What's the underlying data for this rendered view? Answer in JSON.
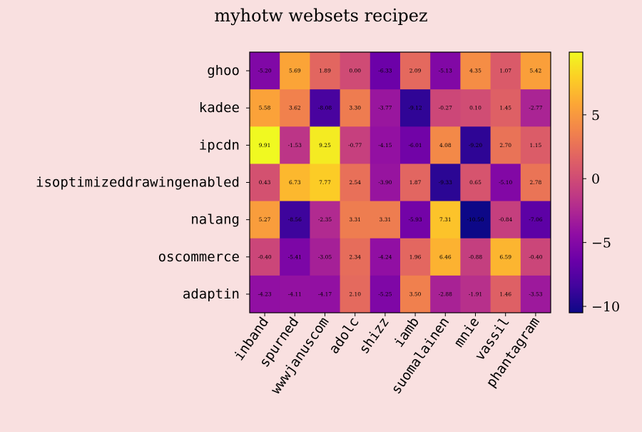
{
  "chart_data": {
    "type": "heatmap",
    "title": "myhotw websets recipez",
    "rows": [
      "ghoo",
      "kadee",
      "ipcdn",
      "isoptimizeddrawingenabled",
      "nalang",
      "oscommerce",
      "adaptin"
    ],
    "columns": [
      "inband",
      "spurned",
      "wwwjanuscom",
      "adolc",
      "shizz",
      "iamb",
      "suomalainen",
      "mnie",
      "vassil",
      "phantagram"
    ],
    "values": [
      [
        -5.2,
        5.69,
        1.89,
        0.0,
        -6.33,
        2.09,
        -5.13,
        4.35,
        1.07,
        5.42
      ],
      [
        5.58,
        3.62,
        -8.08,
        3.3,
        -3.77,
        -9.12,
        -0.27,
        0.1,
        1.45,
        -2.77
      ],
      [
        9.91,
        -1.53,
        9.25,
        -0.77,
        -4.15,
        -6.01,
        4.08,
        -9.2,
        2.7,
        1.15
      ],
      [
        0.43,
        6.73,
        7.77,
        2.54,
        -3.9,
        1.87,
        -9.33,
        0.65,
        -5.1,
        2.78
      ],
      [
        5.27,
        -8.56,
        -2.35,
        3.31,
        3.31,
        -5.93,
        7.31,
        -10.5,
        -0.84,
        -7.06
      ],
      [
        -0.4,
        -5.41,
        -3.05,
        2.34,
        -4.24,
        1.96,
        6.46,
        -0.88,
        6.59,
        -0.4
      ],
      [
        -4.23,
        -4.11,
        -4.17,
        2.1,
        -5.25,
        3.5,
        -2.88,
        -1.91,
        1.46,
        -3.53
      ]
    ],
    "value_labels": [
      [
        "-5.20",
        "5.69",
        "1.89",
        "0.00",
        "-6.33",
        "2.09",
        "-5.13",
        "4.35",
        "1.07",
        "5.42"
      ],
      [
        "5.58",
        "3.62",
        "-8.08",
        "3.30",
        "-3.77",
        "-9.12",
        "-0.27",
        "0.10",
        "1.45",
        "-2.77"
      ],
      [
        "9.91",
        "-1.53",
        "9.25",
        "-0.77",
        "-4.15",
        "-6.01",
        "4.08",
        "-9.20",
        "2.70",
        "1.15"
      ],
      [
        "0.43",
        "6.73",
        "7.77",
        "2.54",
        "-3.90",
        "1.87",
        "-9.33",
        "0.65",
        "-5.10",
        "2.78"
      ],
      [
        "5.27",
        "-8.56",
        "-2.35",
        "3.31",
        "3.31",
        "-5.93",
        "7.31",
        "-10.50",
        "-0.84",
        "-7.06"
      ],
      [
        "-0.40",
        "-5.41",
        "-3.05",
        "2.34",
        "-4.24",
        "1.96",
        "6.46",
        "-0.88",
        "6.59",
        "-0.40"
      ],
      [
        "-4.23",
        "-4.11",
        "-4.17",
        "2.10",
        "-5.25",
        "3.50",
        "-2.88",
        "-1.91",
        "1.46",
        "-3.53"
      ]
    ],
    "colormap": "plasma",
    "colorbar": {
      "vmin": -10.5,
      "vmax": 9.91,
      "ticks": [
        {
          "value": 5,
          "label": "5"
        },
        {
          "value": 0,
          "label": "0"
        },
        {
          "value": -5,
          "label": "−5"
        },
        {
          "value": -10,
          "label": "−10"
        }
      ]
    },
    "grid": false,
    "colors": {
      "background": "#f9e0e0",
      "frame": "#000000"
    }
  }
}
